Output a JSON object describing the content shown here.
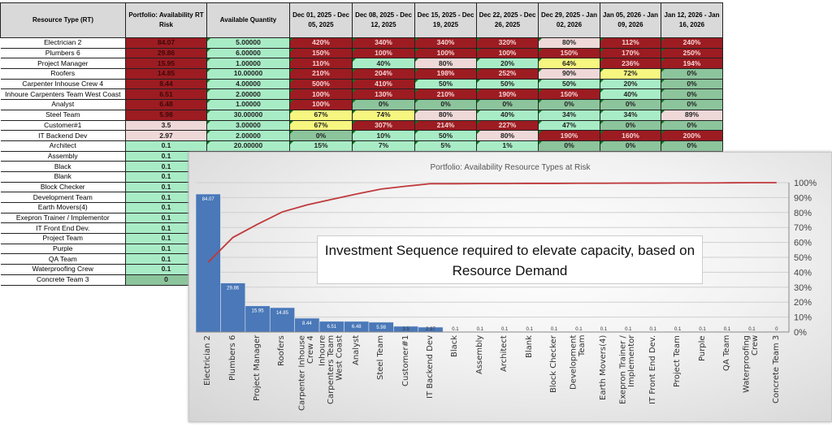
{
  "table": {
    "headers": [
      "Resource Type (RT)",
      "Portfolio: Availability RT Risk",
      "Available Quantity",
      "Dec 01, 2025 - Dec 05, 2025",
      "Dec 08, 2025 - Dec 12, 2025",
      "Dec 15, 2025 - Dec 19, 2025",
      "Dec 22, 2025 - Dec 26, 2025",
      "Dec 29, 2025 - Jan 02, 2026",
      "Jan 05, 2026 - Jan 09, 2026",
      "Jan 12, 2026 - Jan 16, 2026"
    ],
    "rows": [
      {
        "name": "Electrician 2",
        "risk": "84.07",
        "risk_status": "Rk",
        "qty": "5.00000",
        "weeks": [
          "420%",
          "340%",
          "340%",
          "320%",
          "80%",
          "112%",
          "240%"
        ],
        "status": [
          "R",
          "R",
          "R",
          "R",
          "P",
          "R",
          "R"
        ]
      },
      {
        "name": "Plumbers 6",
        "risk": "29.86",
        "risk_status": "Rk",
        "qty": "6.00000",
        "weeks": [
          "150%",
          "100%",
          "100%",
          "100%",
          "150%",
          "170%",
          "250%"
        ],
        "status": [
          "R",
          "R",
          "R",
          "R",
          "R",
          "R",
          "R"
        ]
      },
      {
        "name": "Project Manager",
        "risk": "15.95",
        "risk_status": "Rk",
        "qty": "1.00000",
        "weeks": [
          "110%",
          "40%",
          "80%",
          "20%",
          "64%",
          "236%",
          "194%"
        ],
        "status": [
          "R",
          "G",
          "P",
          "G",
          "Y",
          "R",
          "R"
        ]
      },
      {
        "name": "Roofers",
        "risk": "14.85",
        "risk_status": "Rk",
        "qty": "10.00000",
        "weeks": [
          "210%",
          "204%",
          "198%",
          "252%",
          "90%",
          "72%",
          "0%"
        ],
        "status": [
          "R",
          "R",
          "R",
          "R",
          "P",
          "Y",
          "D"
        ]
      },
      {
        "name": "Carpenter Inhouse Crew 4",
        "risk": "8.44",
        "risk_status": "Rk",
        "qty": "4.00000",
        "weeks": [
          "500%",
          "410%",
          "50%",
          "50%",
          "50%",
          "20%",
          "0%"
        ],
        "status": [
          "R",
          "R",
          "G",
          "G",
          "G",
          "G",
          "D"
        ]
      },
      {
        "name": "Inhoure Carpenters Team West Coast",
        "risk": "6.51",
        "risk_status": "Rk",
        "qty": "2.00000",
        "weeks": [
          "100%",
          "130%",
          "210%",
          "190%",
          "150%",
          "40%",
          "0%"
        ],
        "status": [
          "R",
          "R",
          "R",
          "R",
          "R",
          "G",
          "D"
        ]
      },
      {
        "name": "Analyst",
        "risk": "6.48",
        "risk_status": "Rk",
        "qty": "1.00000",
        "weeks": [
          "100%",
          "0%",
          "0%",
          "0%",
          "0%",
          "0%",
          "0%"
        ],
        "status": [
          "R",
          "D",
          "D",
          "D",
          "D",
          "D",
          "D"
        ]
      },
      {
        "name": "Steel Team",
        "risk": "5.98",
        "risk_status": "Rk",
        "qty": "30.00000",
        "weeks": [
          "67%",
          "74%",
          "80%",
          "40%",
          "34%",
          "34%",
          "89%"
        ],
        "status": [
          "Y",
          "Y",
          "P",
          "G",
          "G",
          "G",
          "P"
        ]
      },
      {
        "name": "Customer#1",
        "risk": "3.5",
        "risk_status": "P",
        "qty": "3.00000",
        "weeks": [
          "67%",
          "307%",
          "214%",
          "227%",
          "47%",
          "0%",
          "0%"
        ],
        "status": [
          "Y",
          "R",
          "R",
          "R",
          "G",
          "D",
          "D"
        ]
      },
      {
        "name": "IT Backend Dev",
        "risk": "2.97",
        "risk_status": "P",
        "qty": "2.00000",
        "weeks": [
          "0%",
          "10%",
          "50%",
          "80%",
          "190%",
          "160%",
          "200%"
        ],
        "status": [
          "D",
          "G",
          "G",
          "P",
          "R",
          "R",
          "R"
        ]
      },
      {
        "name": "Architect",
        "risk": "0.1",
        "risk_status": "G",
        "qty": "20.00000",
        "weeks": [
          "15%",
          "7%",
          "5%",
          "1%",
          "0%",
          "0%",
          "0%"
        ],
        "status": [
          "G",
          "G",
          "G",
          "G",
          "D",
          "D",
          "D"
        ]
      },
      {
        "name": "Assembly",
        "risk": "0.1",
        "risk_status": "G"
      },
      {
        "name": "Black",
        "risk": "0.1",
        "risk_status": "G"
      },
      {
        "name": "Blank",
        "risk": "0.1",
        "risk_status": "G"
      },
      {
        "name": "Block Checker",
        "risk": "0.1",
        "risk_status": "G"
      },
      {
        "name": "Development Team",
        "risk": "0.1",
        "risk_status": "G"
      },
      {
        "name": "Earth Movers(4)",
        "risk": "0.1",
        "risk_status": "G"
      },
      {
        "name": "Exepron Trainer / Implementor",
        "risk": "0.1",
        "risk_status": "G"
      },
      {
        "name": "IT Front End Dev.",
        "risk": "0.1",
        "risk_status": "G"
      },
      {
        "name": "Project Team",
        "risk": "0.1",
        "risk_status": "G"
      },
      {
        "name": "Purple",
        "risk": "0.1",
        "risk_status": "G"
      },
      {
        "name": "QA Team",
        "risk": "0.1",
        "risk_status": "G"
      },
      {
        "name": "Waterproofing Crew",
        "risk": "0.1",
        "risk_status": "G"
      },
      {
        "name": "Concrete Team 3",
        "risk": "0",
        "risk_status": "D"
      }
    ]
  },
  "colors": {
    "bar": "#4a78b8",
    "line": "#c0393c",
    "red": "#9c1c22",
    "pink": "#efd8d8",
    "green": "#a8ecc6",
    "dark_green": "#8cc49c",
    "yellow": "#f6f680"
  },
  "chart_data": {
    "type": "bar",
    "title": "Portfolio: Availability Resource Types at Risk",
    "annotation": "Investment Sequence required to elevate capacity, based on Resource Demand",
    "categories": [
      "Electrician 2",
      "Plumbers 6",
      "Project Manager",
      "Roofers",
      "Carpenter Inhouse Crew 4",
      "Inhoure Carpenters Team West Coast",
      "Analyst",
      "Steel Team",
      "Customer#1",
      "IT Backend Dev",
      "Black",
      "Assembly",
      "Architect",
      "Blank",
      "Block Checker",
      "Development Team",
      "Earth Movers(4)",
      "Exepron Trainer / Implementor",
      "IT Front End Dev.",
      "Project Team",
      "Purple",
      "QA Team",
      "Waterproofing Crew",
      "Concrete Team 3"
    ],
    "values": [
      84.07,
      29.86,
      15.95,
      14.85,
      8.44,
      6.51,
      6.48,
      5.98,
      3.5,
      2.97,
      0.1,
      0.1,
      0.1,
      0.1,
      0.1,
      0.1,
      0.1,
      0.1,
      0.1,
      0.1,
      0.1,
      0.1,
      0.1,
      0
    ],
    "data_labels": [
      "84.07",
      "29.86",
      "15.95",
      "14.85",
      "8.44",
      "6.51",
      "6.48",
      "5.98",
      "3.5",
      "2.97",
      "0.1",
      "0.1",
      "0.1",
      "0.1",
      "0.1",
      "0.1",
      "0.1",
      "0.1",
      "0.1",
      "0.1",
      "0.1",
      "0.1",
      "0.1",
      "0"
    ],
    "cumulative_percent": [
      46.7,
      63.3,
      72.2,
      80.4,
      85.1,
      88.8,
      92.4,
      95.7,
      97.6,
      99.3,
      99.3,
      99.4,
      99.4,
      99.5,
      99.5,
      99.6,
      99.6,
      99.7,
      99.7,
      99.8,
      99.8,
      99.9,
      100,
      100
    ],
    "ylim": [
      0,
      91
    ],
    "y2lim": [
      0,
      100
    ],
    "y2_ticks": [
      "0%",
      "10%",
      "20%",
      "30%",
      "40%",
      "50%",
      "60%",
      "70%",
      "80%",
      "90%",
      "100%"
    ],
    "grid": true,
    "legend": "none"
  }
}
